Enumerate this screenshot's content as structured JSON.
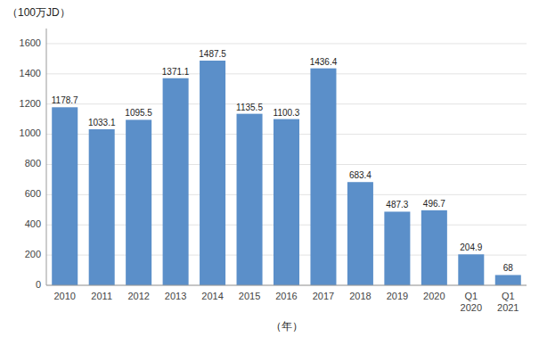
{
  "chart_data": {
    "type": "bar",
    "ylabel": "（100万JD）",
    "xlabel": "（年）",
    "categories": [
      "2010",
      "2011",
      "2012",
      "2013",
      "2014",
      "2015",
      "2016",
      "2017",
      "2018",
      "2019",
      "2020",
      "Q1\n2020",
      "Q1\n2021"
    ],
    "values": [
      1178.7,
      1033.1,
      1095.5,
      1371.1,
      1487.5,
      1135.5,
      1100.3,
      1436.4,
      683.4,
      487.3,
      496.7,
      204.9,
      68
    ],
    "color": "#5b8fc9",
    "ylim": [
      0,
      1700
    ],
    "yticks": [
      0,
      200,
      400,
      600,
      800,
      1000,
      1200,
      1400,
      1600
    ],
    "grid": true,
    "data_labels": true
  }
}
